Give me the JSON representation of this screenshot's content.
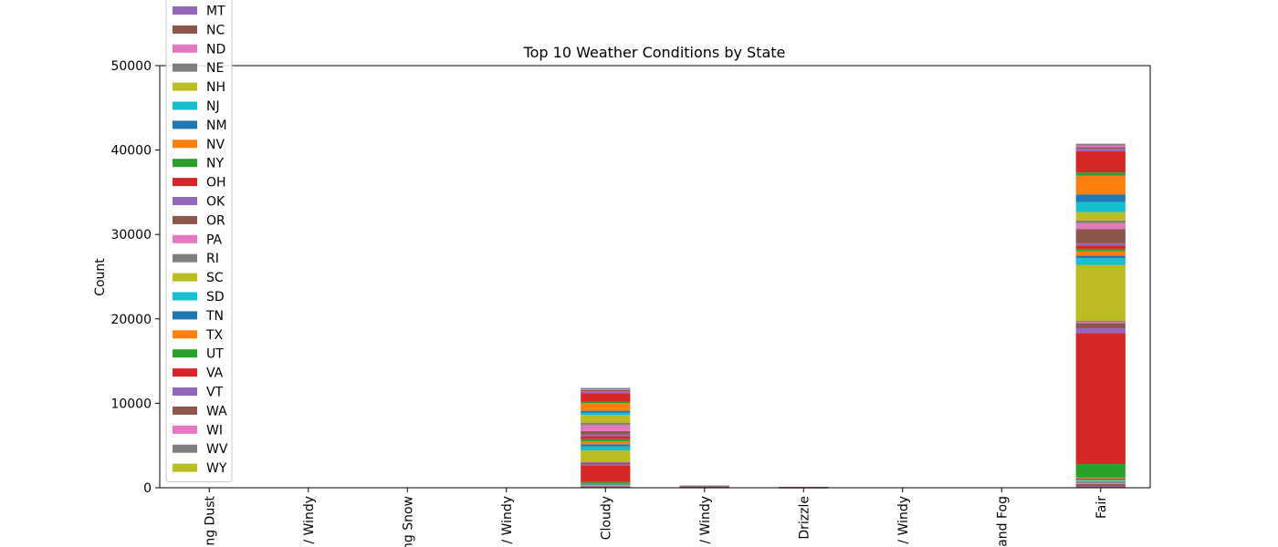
{
  "chart_data": {
    "type": "bar",
    "stacked": true,
    "title": "Top 10 Weather Conditions by State",
    "xlabel": "",
    "ylabel": "Count",
    "ylim": [
      0,
      50000
    ],
    "yticks": [
      0,
      10000,
      20000,
      30000,
      40000,
      50000
    ],
    "grid": false,
    "legend_placement": "upper-left, overflowing above plot",
    "categories": [
      "ng Dust",
      "/ Windy",
      "ng Snow",
      "/ Windy",
      "Cloudy",
      "/ Windy",
      "Drizzle",
      "/ Windy",
      "and Fog",
      "Fair"
    ],
    "series": [
      {
        "name": "MT",
        "color": "#9467bd",
        "values": [
          0,
          0,
          0,
          0,
          60,
          3,
          1,
          0,
          0,
          150
        ]
      },
      {
        "name": "NC",
        "color": "#8c564b",
        "values": [
          0,
          0,
          0,
          0,
          90,
          5,
          2,
          0,
          0,
          300
        ]
      },
      {
        "name": "ND",
        "color": "#e377c2",
        "values": [
          0,
          0,
          0,
          0,
          80,
          4,
          1,
          0,
          0,
          100
        ]
      },
      {
        "name": "NE",
        "color": "#7f7f7f",
        "values": [
          0,
          0,
          0,
          0,
          70,
          3,
          1,
          0,
          0,
          200
        ]
      },
      {
        "name": "NH",
        "color": "#bcbd22",
        "values": [
          0,
          0,
          0,
          0,
          40,
          2,
          1,
          0,
          0,
          80
        ]
      },
      {
        "name": "NJ",
        "color": "#17becf",
        "values": [
          0,
          0,
          0,
          0,
          50,
          3,
          1,
          0,
          0,
          100
        ]
      },
      {
        "name": "NM",
        "color": "#1f77b4",
        "values": [
          0,
          0,
          0,
          0,
          50,
          3,
          1,
          0,
          0,
          150
        ]
      },
      {
        "name": "NV",
        "color": "#ff7f0e",
        "values": [
          0,
          0,
          0,
          0,
          30,
          3,
          1,
          0,
          0,
          120
        ]
      },
      {
        "name": "NY",
        "color": "#2ca02c",
        "values": [
          0,
          0,
          0,
          0,
          200,
          6,
          2,
          0,
          0,
          1600
        ]
      },
      {
        "name": "OH",
        "color": "#d62728",
        "values": [
          0,
          0,
          0,
          0,
          2000,
          40,
          10,
          0,
          0,
          15500
        ]
      },
      {
        "name": "OK",
        "color": "#9467bd",
        "values": [
          0,
          0,
          0,
          0,
          100,
          4,
          1,
          0,
          0,
          600
        ]
      },
      {
        "name": "OR",
        "color": "#8c564b",
        "values": [
          0,
          0,
          0,
          0,
          200,
          5,
          2,
          0,
          0,
          600
        ]
      },
      {
        "name": "PA",
        "color": "#e377c2",
        "values": [
          0,
          0,
          0,
          0,
          80,
          4,
          1,
          0,
          0,
          150
        ]
      },
      {
        "name": "RI",
        "color": "#7f7f7f",
        "values": [
          0,
          0,
          0,
          0,
          60,
          3,
          1,
          0,
          0,
          150
        ]
      },
      {
        "name": "SC",
        "color": "#bcbd22",
        "values": [
          0,
          0,
          0,
          0,
          1300,
          25,
          8,
          0,
          0,
          6600
        ]
      },
      {
        "name": "SD",
        "color": "#17becf",
        "values": [
          0,
          0,
          0,
          0,
          500,
          8,
          3,
          0,
          0,
          800
        ]
      },
      {
        "name": "TN",
        "color": "#1f77b4",
        "values": [
          0,
          0,
          0,
          0,
          250,
          6,
          2,
          0,
          0,
          300
        ]
      },
      {
        "name": "TX",
        "color": "#ff7f0e",
        "values": [
          0,
          0,
          0,
          0,
          350,
          8,
          5,
          0,
          0,
          500
        ]
      },
      {
        "name": "UT",
        "color": "#2ca02c",
        "values": [
          0,
          0,
          0,
          0,
          250,
          5,
          2,
          0,
          0,
          300
        ]
      },
      {
        "name": "VA",
        "color": "#d62728",
        "values": [
          0,
          0,
          0,
          0,
          350,
          6,
          3,
          0,
          0,
          400
        ]
      },
      {
        "name": "VT",
        "color": "#9467bd",
        "values": [
          0,
          0,
          0,
          0,
          200,
          4,
          1,
          0,
          0,
          250
        ]
      },
      {
        "name": "WA",
        "color": "#8c564b",
        "values": [
          0,
          0,
          0,
          0,
          400,
          8,
          3,
          0,
          0,
          1700
        ]
      },
      {
        "name": "WI",
        "color": "#e377c2",
        "values": [
          0,
          0,
          0,
          0,
          700,
          10,
          3,
          0,
          0,
          700
        ]
      },
      {
        "name": "WV",
        "color": "#7f7f7f",
        "values": [
          0,
          0,
          0,
          0,
          300,
          5,
          2,
          0,
          0,
          300
        ]
      },
      {
        "name": "WY",
        "color": "#bcbd22",
        "values": [
          0,
          0,
          0,
          0,
          900,
          15,
          5,
          0,
          0,
          1000
        ]
      },
      {
        "name": "",
        "color": "#17becf",
        "values": [
          0,
          0,
          0,
          0,
          300,
          6,
          2,
          0,
          0,
          1200
        ]
      },
      {
        "name": "",
        "color": "#1f77b4",
        "values": [
          0,
          0,
          0,
          0,
          200,
          5,
          2,
          0,
          0,
          900
        ]
      },
      {
        "name": "",
        "color": "#ff7f0e",
        "values": [
          0,
          0,
          0,
          0,
          900,
          10,
          5,
          0,
          0,
          2200
        ]
      },
      {
        "name": "",
        "color": "#2ca02c",
        "values": [
          0,
          0,
          0,
          0,
          200,
          5,
          2,
          0,
          0,
          400
        ]
      },
      {
        "name": "",
        "color": "#d62728",
        "values": [
          0,
          0,
          0,
          0,
          1000,
          12,
          4,
          0,
          0,
          2500
        ]
      },
      {
        "name": "",
        "color": "#9467bd",
        "values": [
          0,
          0,
          0,
          0,
          200,
          4,
          1,
          0,
          0,
          300
        ]
      },
      {
        "name": "",
        "color": "#8c564b",
        "values": [
          0,
          0,
          0,
          0,
          150,
          4,
          1,
          0,
          0,
          200
        ]
      },
      {
        "name": "",
        "color": "#e377c2",
        "values": [
          0,
          0,
          0,
          0,
          100,
          3,
          1,
          0,
          0,
          200
        ]
      },
      {
        "name": "",
        "color": "#7f7f7f",
        "values": [
          0,
          0,
          0,
          0,
          160,
          3,
          1,
          0,
          0,
          200
        ]
      }
    ]
  }
}
